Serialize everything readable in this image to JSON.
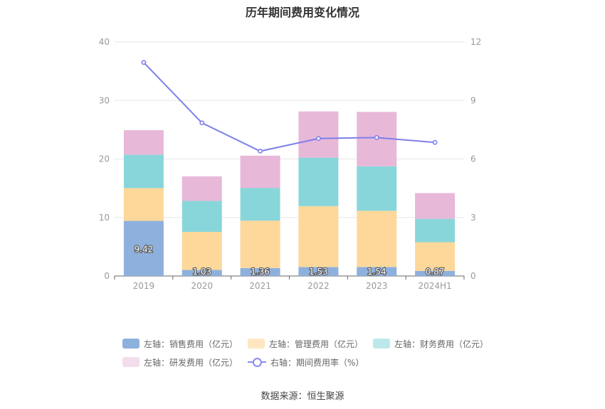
{
  "chart_data": {
    "type": "bar",
    "title": "历年期间费用变化情况",
    "categories": [
      "2019",
      "2020",
      "2021",
      "2022",
      "2023",
      "2024H1"
    ],
    "stacked": true,
    "y_left": {
      "ylim": [
        0,
        40
      ],
      "ticks": [
        "0",
        "10",
        "20",
        "30",
        "40"
      ]
    },
    "y_right": {
      "ylim": [
        0,
        12
      ],
      "ticks": [
        "0",
        "3",
        "6",
        "9",
        "12"
      ]
    },
    "series": [
      {
        "name": "左轴：销售费用（亿元）",
        "axis": "left",
        "color": "#8EB0DD",
        "values": [
          9.42,
          1.03,
          1.36,
          1.53,
          1.54,
          0.87
        ],
        "labels": [
          "9.42",
          "1.03",
          "1.36",
          "1.53",
          "1.54",
          "0.87"
        ]
      },
      {
        "name": "左轴：管理费用（亿元）",
        "axis": "left",
        "color": "#FDD89A",
        "values": [
          5.6,
          6.5,
          8.1,
          10.4,
          9.6,
          4.9
        ]
      },
      {
        "name": "左轴：财务费用（亿元）",
        "axis": "left",
        "color": "#89D6DA",
        "values": [
          5.7,
          5.3,
          5.6,
          8.3,
          7.6,
          4.0
        ]
      },
      {
        "name": "左轴：研发费用（亿元）",
        "axis": "left",
        "color": "#E8B8D8",
        "values": [
          4.2,
          4.2,
          5.5,
          7.9,
          9.3,
          4.4
        ]
      },
      {
        "name": "右轴：期间费用率（%）",
        "axis": "right",
        "type": "line",
        "color": "#7F7FEA",
        "values": [
          10.95,
          7.85,
          6.4,
          7.05,
          7.1,
          6.85
        ]
      }
    ],
    "legend_position": "bottom",
    "source": "数据来源：恒生聚源"
  }
}
